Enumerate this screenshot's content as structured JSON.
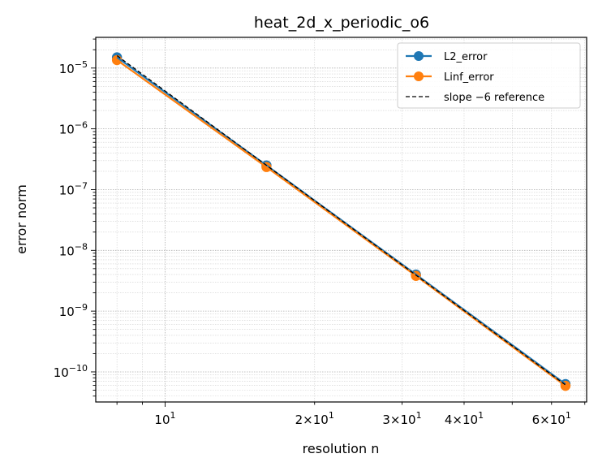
{
  "chart_data": {
    "type": "line",
    "title": "heat_2d_x_periodic_o6",
    "xlabel": "resolution n",
    "ylabel": "error norm",
    "xscale": "log",
    "yscale": "log",
    "xlim": [
      7.25,
      70.6
    ],
    "ylim": [
      3.2e-11,
      3.2e-05
    ],
    "grid": true,
    "legend_position": "top-right",
    "x_ticks": [
      {
        "value": 10,
        "label": "10",
        "exp": "1"
      },
      {
        "value": 20,
        "label": "2×10",
        "exp": "1"
      },
      {
        "value": 30,
        "label": "3×10",
        "exp": "1"
      },
      {
        "value": 40,
        "label": "4×10",
        "exp": "1"
      },
      {
        "value": 60,
        "label": "6×10",
        "exp": "1"
      }
    ],
    "y_ticks": [
      {
        "value": 1e-10,
        "label": "10",
        "exp": "−10"
      },
      {
        "value": 1e-09,
        "label": "10",
        "exp": "−9"
      },
      {
        "value": 1e-08,
        "label": "10",
        "exp": "−8"
      },
      {
        "value": 1e-07,
        "label": "10",
        "exp": "−7"
      },
      {
        "value": 1e-06,
        "label": "10",
        "exp": "−6"
      },
      {
        "value": 1e-05,
        "label": "10",
        "exp": "−5"
      }
    ],
    "series": [
      {
        "name": "L2_error",
        "color": "#1f77b4",
        "style": "solid-marker",
        "x": [
          8,
          16,
          32,
          64
        ],
        "y": [
          1.5e-05,
          2.5e-07,
          4e-09,
          6.3e-11
        ]
      },
      {
        "name": "Linf_error",
        "color": "#ff7f0e",
        "style": "solid-marker",
        "x": [
          8,
          16,
          32,
          64
        ],
        "y": [
          1.35e-05,
          2.35e-07,
          3.8e-09,
          5.9e-11
        ]
      },
      {
        "name": "slope −6 reference",
        "color": "#000000",
        "style": "dashed",
        "x": [
          8,
          64
        ],
        "y": [
          1.6e-05,
          6.1e-11
        ]
      }
    ]
  }
}
